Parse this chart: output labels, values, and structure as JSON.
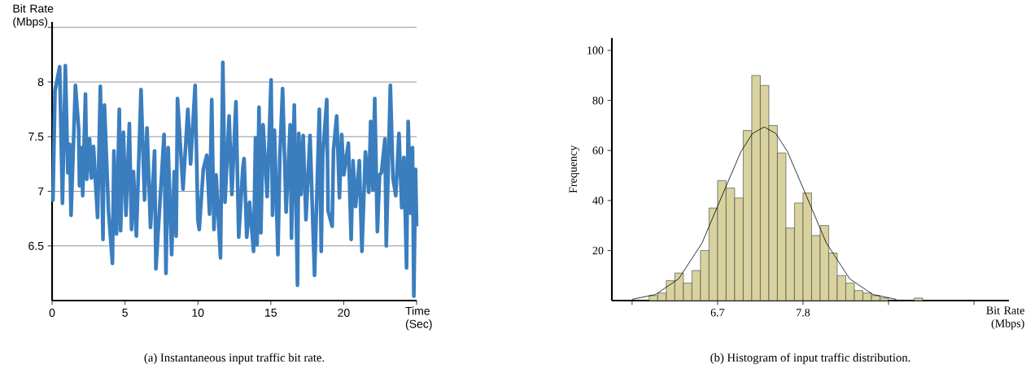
{
  "chart_data": [
    {
      "type": "line",
      "xlabel": "Time (Sec)",
      "ylabel": "Bit Rate (Mbps)",
      "annotations": [
        "(a) Instantaneous input traffic bit rate."
      ],
      "x": [
        0,
        0.06,
        0.2,
        0.52,
        0.71,
        0.91,
        1.08,
        1.21,
        1.3,
        1.6,
        1.82,
        1.88,
        2.01,
        2.1,
        2.29,
        2.38,
        2.57,
        2.7,
        2.84,
        3.12,
        3.31,
        3.49,
        3.59,
        3.87,
        4.14,
        4.24,
        4.42,
        4.61,
        4.7,
        4.89,
        5.07,
        5.3,
        5.45,
        5.58,
        5.78,
        6.1,
        6.34,
        6.51,
        6.75,
        7.03,
        7.12,
        7.68,
        7.81,
        7.96,
        8.2,
        8.38,
        8.51,
        8.6,
        8.98,
        9.31,
        9.5,
        9.81,
        10.0,
        10.09,
        10.37,
        10.61,
        10.8,
        10.95,
        11.1,
        11.25,
        11.55,
        11.71,
        11.86,
        12.14,
        12.33,
        12.61,
        12.8,
        13.08,
        13.17,
        13.35,
        13.54,
        13.82,
        13.95,
        14.06,
        14.19,
        14.32,
        14.47,
        14.75,
        15.02,
        15.12,
        15.25,
        15.49,
        15.62,
        15.81,
        16.05,
        16.33,
        16.42,
        16.61,
        16.83,
        16.92,
        17.07,
        17.22,
        17.41,
        17.69,
        18.0,
        18.33,
        18.46,
        18.56,
        18.84,
        18.93,
        19.21,
        19.3,
        19.52,
        19.71,
        19.86,
        20.01,
        20.32,
        20.51,
        20.64,
        20.82,
        21.07,
        21.25,
        21.49,
        21.72,
        21.85,
        22.0,
        22.13,
        22.31,
        22.46,
        22.59,
        22.83,
        22.92,
        23.2,
        23.38,
        23.57,
        23.79,
        23.98,
        24.13,
        24.31,
        24.42,
        24.59,
        24.72,
        24.81,
        24.93,
        25.0
      ],
      "values": [
        6.93,
        6.92,
        7.92,
        8.14,
        6.89,
        8.15,
        7.17,
        7.43,
        6.78,
        7.97,
        7.58,
        7.05,
        7.4,
        6.96,
        7.89,
        7.11,
        7.48,
        7.12,
        7.41,
        6.76,
        7.96,
        6.56,
        7.79,
        6.82,
        6.34,
        7.37,
        6.61,
        7.75,
        6.64,
        7.54,
        6.78,
        7.62,
        6.65,
        7.18,
        6.59,
        7.93,
        6.92,
        7.58,
        6.67,
        7.37,
        6.29,
        7.52,
        6.25,
        7.4,
        6.42,
        7.18,
        6.59,
        7.85,
        7.02,
        7.75,
        7.25,
        7.97,
        6.74,
        6.65,
        7.2,
        7.33,
        6.79,
        7.84,
        6.65,
        7.15,
        6.39,
        8.18,
        6.9,
        7.69,
        6.97,
        7.82,
        6.58,
        7.21,
        7.3,
        6.58,
        6.9,
        6.45,
        7.49,
        6.51,
        7.77,
        6.62,
        7.61,
        6.95,
        8.02,
        6.78,
        7.56,
        6.42,
        7.32,
        7.94,
        6.81,
        7.61,
        6.57,
        7.79,
        6.14,
        7.53,
        6.97,
        7.51,
        6.74,
        7.51,
        6.23,
        7.75,
        6.45,
        7.32,
        7.84,
        6.82,
        6.68,
        7.38,
        7.69,
        6.94,
        7.52,
        7.15,
        7.44,
        6.56,
        7.28,
        6.86,
        7.28,
        6.45,
        7.36,
        6.99,
        7.64,
        7.01,
        7.85,
        6.63,
        7.15,
        7.17,
        7.48,
        6.5,
        7.97,
        7.12,
        6.96,
        7.53,
        6.85,
        7.31,
        6.3,
        7.64,
        6.8,
        7.4,
        6.04,
        7.2,
        6.68
      ],
      "color": "#3a7ebf",
      "xlim": [
        0,
        25
      ],
      "ylim": [
        6,
        8.55
      ],
      "xticks": [
        0,
        5,
        10,
        15,
        20,
        {
          "value": 25,
          "label": null
        }
      ],
      "yticks": [
        6.5,
        7,
        7.5,
        8,
        {
          "value": 8.5,
          "label": null
        }
      ],
      "grid": "y"
    },
    {
      "type": "histogram",
      "xlabel": "Bit Rate (Mbps)",
      "ylabel": "Frequency",
      "annotations": [
        "(b) Histogram of input traffic distribution."
      ],
      "bins": [
        5.82,
        5.93,
        6.04,
        6.15,
        6.26,
        6.37,
        6.48,
        6.59,
        6.7,
        6.81,
        6.92,
        7.03,
        7.14,
        7.25,
        7.36,
        7.47,
        7.58,
        7.69,
        7.8,
        7.91,
        8.02,
        8.13,
        8.24,
        8.35,
        8.46,
        8.57,
        8.68,
        8.79,
        8.9,
        9.01,
        9.12,
        9.23,
        9.34
      ],
      "values": [
        2,
        3,
        8,
        11,
        7,
        12,
        20,
        37,
        48,
        45,
        41,
        68,
        90,
        86,
        70,
        59,
        29,
        39,
        43,
        26,
        30,
        19,
        10,
        7,
        4,
        3,
        2,
        1,
        0,
        0,
        0,
        1
      ],
      "color": "#d8d29e",
      "series": [
        {
          "type": "line",
          "color": "#000000",
          "x": [
            5.6,
            5.9,
            6.2,
            6.5,
            6.8,
            7.0,
            7.15,
            7.3,
            7.45,
            7.6,
            7.8,
            8.1,
            8.4,
            8.7,
            9.0
          ],
          "values": [
            0.5,
            2.4,
            8.7,
            23,
            45,
            59.5,
            66.8,
            69.4,
            66.8,
            59.5,
            45,
            23,
            8.7,
            2.4,
            0.5
          ]
        }
      ],
      "xlim": [
        5.34,
        10.45
      ],
      "ylim": [
        0,
        105
      ],
      "xticks": [
        {
          "value": 5.6,
          "label": null
        },
        6.7,
        7.8,
        {
          "value": 8.9,
          "label": null
        },
        {
          "value": 10,
          "label": null
        }
      ],
      "yticks": [
        20,
        40,
        60,
        80,
        100
      ]
    }
  ]
}
